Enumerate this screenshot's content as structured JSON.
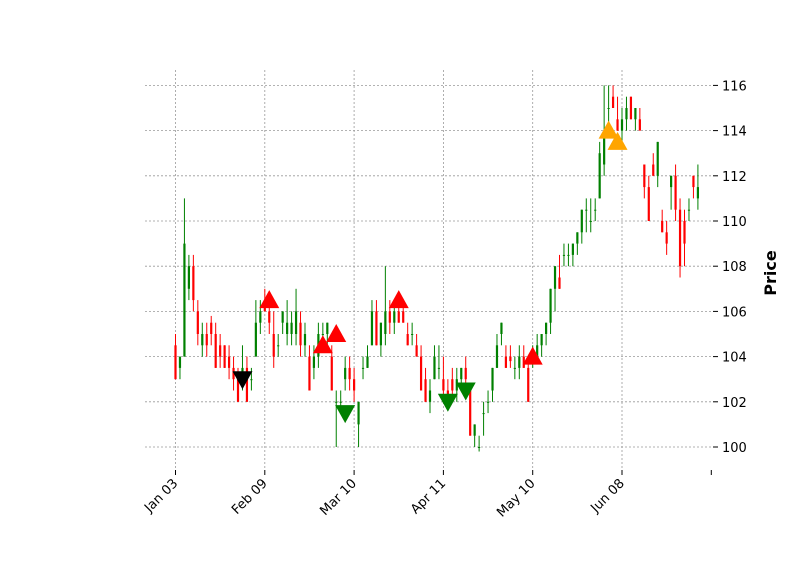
{
  "chart_data": {
    "type": "candlestick",
    "ylabel": "Price",
    "ylim": [
      99,
      116.8
    ],
    "yticks": [
      100,
      102,
      104,
      106,
      108,
      110,
      112,
      114,
      116
    ],
    "ytick_labels": [
      "100",
      "102",
      "104",
      "106",
      "108",
      "110",
      "112",
      "114",
      "116"
    ],
    "x_range": [
      0,
      120
    ],
    "xticks": [
      {
        "x": 0,
        "label": "Jan 03"
      },
      {
        "x": 20,
        "label": "Feb 09"
      },
      {
        "x": 40,
        "label": "Mar 10"
      },
      {
        "x": 60,
        "label": "Apr 11"
      },
      {
        "x": 80,
        "label": "May 10"
      },
      {
        "x": 100,
        "label": "Jun 08"
      },
      {
        "x": 120,
        "label": ""
      }
    ],
    "grid": true,
    "colors": {
      "up": "#008000",
      "down": "#ff0000"
    },
    "candles": [
      [
        0,
        104.5,
        105.0,
        103.0,
        103.0
      ],
      [
        1,
        103.5,
        104.0,
        103.0,
        104.0
      ],
      [
        2,
        104.0,
        111.0,
        104.0,
        109.0
      ],
      [
        3,
        107.0,
        108.5,
        106.5,
        108.0
      ],
      [
        4,
        108.0,
        108.5,
        106.0,
        106.5
      ],
      [
        5,
        106.0,
        106.5,
        104.5,
        105.0
      ],
      [
        6,
        104.5,
        105.5,
        104.0,
        105.0
      ],
      [
        7,
        105.0,
        105.5,
        104.0,
        104.5
      ],
      [
        8,
        105.5,
        105.8,
        104.5,
        105.0
      ],
      [
        9,
        105.0,
        105.5,
        103.5,
        103.5
      ],
      [
        10,
        104.5,
        105.0,
        103.5,
        104.0
      ],
      [
        11,
        104.5,
        104.5,
        103.5,
        103.5
      ],
      [
        12,
        104.0,
        104.5,
        103.0,
        103.5
      ],
      [
        13,
        103.5,
        104.0,
        102.5,
        103.0
      ],
      [
        14,
        103.0,
        103.5,
        102.0,
        102.0
      ],
      [
        15,
        103.0,
        104.5,
        102.5,
        103.5
      ],
      [
        16,
        103.5,
        104.0,
        102.0,
        102.0
      ],
      [
        17,
        103.0,
        103.5,
        102.5,
        103.0
      ],
      [
        18,
        104.0,
        106.5,
        104.0,
        105.5
      ],
      [
        19,
        105.5,
        106.5,
        105.0,
        106.0
      ],
      [
        20,
        106.5,
        107.0,
        106.0,
        106.0
      ],
      [
        21,
        106.0,
        106.5,
        105.0,
        105.5
      ],
      [
        22,
        105.0,
        106.0,
        103.5,
        104.0
      ],
      [
        23,
        104.5,
        105.0,
        104.0,
        104.5
      ],
      [
        24,
        105.5,
        106.0,
        105.0,
        106.0
      ],
      [
        25,
        105.0,
        106.5,
        104.5,
        105.5
      ],
      [
        26,
        105.0,
        106.0,
        104.5,
        105.5
      ],
      [
        27,
        105.0,
        107.0,
        104.5,
        106.0
      ],
      [
        28,
        105.5,
        106.0,
        104.0,
        104.5
      ],
      [
        29,
        104.5,
        105.5,
        104.0,
        105.0
      ],
      [
        30,
        104.0,
        104.5,
        102.5,
        102.5
      ],
      [
        31,
        103.5,
        104.5,
        103.0,
        104.0
      ],
      [
        32,
        104.0,
        105.5,
        103.5,
        105.0
      ],
      [
        33,
        105.0,
        105.5,
        104.5,
        105.0
      ],
      [
        34,
        105.0,
        105.5,
        104.5,
        105.5
      ],
      [
        35,
        104.0,
        104.5,
        102.5,
        102.5
      ],
      [
        36,
        102.0,
        102.5,
        100.0,
        102.0
      ],
      [
        37,
        102.0,
        102.5,
        101.5,
        102.0
      ],
      [
        38,
        103.0,
        104.0,
        102.5,
        103.5
      ],
      [
        39,
        103.5,
        104.0,
        102.5,
        103.0
      ],
      [
        40,
        103.0,
        103.5,
        102.0,
        102.5
      ],
      [
        41,
        101.0,
        102.0,
        100.0,
        102.0
      ],
      [
        42,
        103.5,
        104.0,
        103.0,
        103.5
      ],
      [
        43,
        103.5,
        104.5,
        103.5,
        104.0
      ],
      [
        44,
        104.5,
        106.5,
        104.5,
        106.0
      ],
      [
        45,
        106.0,
        106.5,
        104.5,
        104.5
      ],
      [
        46,
        104.5,
        105.5,
        104.0,
        105.5
      ],
      [
        47,
        105.0,
        108.0,
        104.5,
        106.0
      ],
      [
        48,
        106.0,
        106.5,
        105.0,
        105.5
      ],
      [
        49,
        105.5,
        106.5,
        105.0,
        106.0
      ],
      [
        50,
        106.0,
        106.5,
        105.5,
        105.5
      ],
      [
        51,
        106.0,
        106.5,
        105.5,
        105.5
      ],
      [
        52,
        105.0,
        105.5,
        104.5,
        104.5
      ],
      [
        53,
        105.0,
        105.5,
        104.5,
        105.0
      ],
      [
        54,
        104.5,
        105.0,
        104.0,
        104.0
      ],
      [
        55,
        104.0,
        104.5,
        102.5,
        102.5
      ],
      [
        56,
        103.0,
        103.5,
        102.0,
        102.0
      ],
      [
        57,
        102.0,
        103.0,
        101.5,
        102.5
      ],
      [
        58,
        103.0,
        104.5,
        103.0,
        104.0
      ],
      [
        59,
        103.5,
        104.5,
        103.0,
        103.5
      ],
      [
        60,
        103.0,
        104.0,
        102.0,
        102.5
      ],
      [
        61,
        102.5,
        103.0,
        102.0,
        102.0
      ],
      [
        62,
        103.0,
        103.5,
        102.0,
        102.5
      ],
      [
        63,
        102.5,
        103.5,
        102.0,
        103.0
      ],
      [
        64,
        103.0,
        103.5,
        102.5,
        103.5
      ],
      [
        65,
        103.5,
        104.0,
        102.5,
        103.0
      ],
      [
        66,
        102.5,
        102.5,
        100.5,
        100.5
      ],
      [
        67,
        100.5,
        101.0,
        100.0,
        101.0
      ],
      [
        68,
        100.0,
        100.5,
        99.8,
        100.0
      ],
      [
        69,
        101.5,
        102.0,
        100.5,
        101.5
      ],
      [
        70,
        102.0,
        102.5,
        101.5,
        102.0
      ],
      [
        71,
        102.5,
        103.5,
        102.0,
        103.5
      ],
      [
        72,
        103.5,
        105.0,
        103.5,
        104.5
      ],
      [
        73,
        105.0,
        105.5,
        104.5,
        105.5
      ],
      [
        74,
        104.0,
        104.5,
        103.5,
        103.5
      ],
      [
        75,
        104.0,
        104.5,
        103.5,
        103.8
      ],
      [
        76,
        103.5,
        104.0,
        103.0,
        103.5
      ],
      [
        77,
        103.5,
        104.5,
        103.0,
        104.0
      ],
      [
        78,
        104.0,
        104.5,
        103.5,
        103.5
      ],
      [
        79,
        103.5,
        104.0,
        102.0,
        102.0
      ],
      [
        80,
        104.0,
        104.5,
        103.5,
        104.0
      ],
      [
        81,
        104.0,
        105.0,
        104.0,
        104.5
      ],
      [
        82,
        104.5,
        105.0,
        104.0,
        105.0
      ],
      [
        83,
        105.0,
        105.5,
        104.5,
        105.5
      ],
      [
        84,
        105.5,
        107.0,
        105.0,
        107.0
      ],
      [
        85,
        107.0,
        108.0,
        106.0,
        108.0
      ],
      [
        86,
        107.5,
        108.5,
        107.0,
        107.0
      ],
      [
        87,
        108.5,
        109.0,
        108.0,
        108.5
      ],
      [
        88,
        108.5,
        109.0,
        108.0,
        108.5
      ],
      [
        89,
        108.5,
        109.0,
        108.0,
        109.0
      ],
      [
        90,
        109.0,
        109.5,
        108.5,
        109.5
      ],
      [
        91,
        109.5,
        110.5,
        109.0,
        110.5
      ],
      [
        92,
        110.5,
        111.0,
        109.5,
        110.5
      ],
      [
        93,
        110.0,
        111.0,
        109.5,
        110.0
      ],
      [
        94,
        110.5,
        111.0,
        110.0,
        110.5
      ],
      [
        95,
        111.0,
        113.5,
        111.0,
        113.0
      ],
      [
        96,
        112.5,
        116.0,
        112.0,
        114.0
      ],
      [
        97,
        115.0,
        116.0,
        114.0,
        115.0
      ],
      [
        98,
        115.5,
        116.0,
        115.0,
        115.0
      ],
      [
        99,
        114.5,
        115.5,
        114.0,
        114.0
      ],
      [
        100,
        114.0,
        115.0,
        113.5,
        114.5
      ],
      [
        101,
        114.5,
        115.5,
        114.0,
        115.0
      ],
      [
        102,
        115.5,
        115.5,
        114.5,
        114.5
      ],
      [
        103,
        114.5,
        115.0,
        114.0,
        115.0
      ],
      [
        104,
        114.5,
        115.0,
        114.0,
        114.0
      ],
      [
        105,
        112.5,
        112.5,
        111.0,
        111.5
      ],
      [
        106,
        111.5,
        112.0,
        110.0,
        110.0
      ],
      [
        107,
        112.5,
        113.0,
        112.0,
        112.0
      ],
      [
        108,
        112.0,
        113.5,
        111.5,
        113.5
      ],
      [
        109,
        110.0,
        110.5,
        109.5,
        109.5
      ],
      [
        110,
        109.5,
        110.0,
        108.5,
        109.0
      ],
      [
        111,
        111.5,
        112.0,
        110.5,
        112.0
      ],
      [
        112,
        112.0,
        112.5,
        110.0,
        110.5
      ],
      [
        113,
        110.5,
        111.0,
        107.5,
        108.0
      ],
      [
        114,
        110.0,
        110.5,
        108.0,
        109.0
      ],
      [
        115,
        110.5,
        111.0,
        110.0,
        110.5
      ],
      [
        116,
        112.0,
        112.0,
        111.0,
        111.5
      ],
      [
        117,
        111.0,
        112.5,
        110.5,
        111.5
      ]
    ],
    "markers": [
      {
        "x": 15,
        "y": 103.0,
        "shape": "triangle-down",
        "color": "#000000"
      },
      {
        "x": 21,
        "y": 106.5,
        "shape": "triangle-up",
        "color": "#ff0000"
      },
      {
        "x": 33,
        "y": 104.5,
        "shape": "triangle-up",
        "color": "#ff0000"
      },
      {
        "x": 36,
        "y": 105.0,
        "shape": "triangle-up",
        "color": "#ff0000"
      },
      {
        "x": 38,
        "y": 101.5,
        "shape": "triangle-down",
        "color": "#008000"
      },
      {
        "x": 50,
        "y": 106.5,
        "shape": "triangle-up",
        "color": "#ff0000"
      },
      {
        "x": 61,
        "y": 102.0,
        "shape": "triangle-down",
        "color": "#008000"
      },
      {
        "x": 65,
        "y": 102.5,
        "shape": "triangle-down",
        "color": "#008000"
      },
      {
        "x": 80,
        "y": 104.0,
        "shape": "triangle-up",
        "color": "#ff0000"
      },
      {
        "x": 97,
        "y": 114.0,
        "shape": "triangle-up",
        "color": "#ffa500"
      },
      {
        "x": 99,
        "y": 113.5,
        "shape": "triangle-up",
        "color": "#ffa500"
      }
    ]
  }
}
